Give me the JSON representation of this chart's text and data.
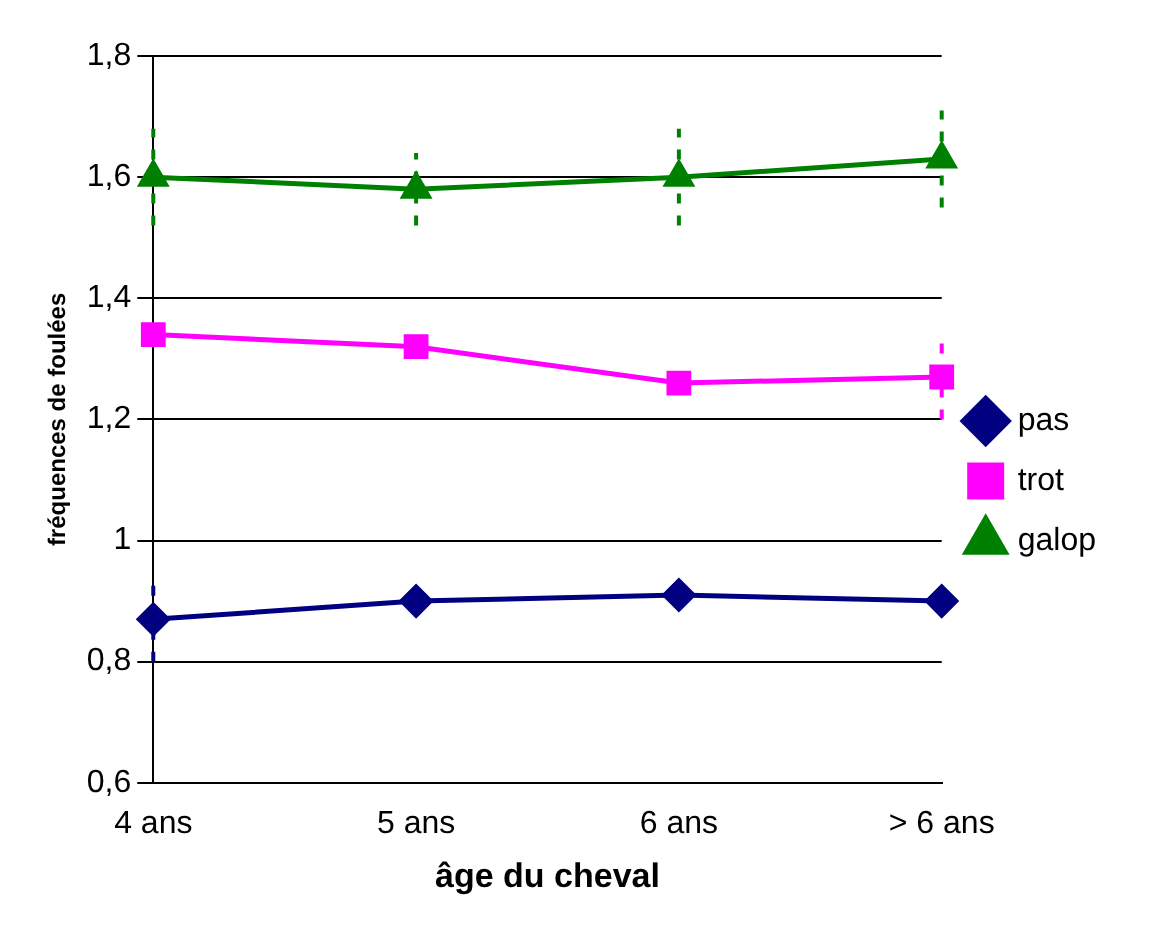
{
  "chart_data": {
    "type": "line",
    "xlabel": "âge du cheval",
    "ylabel": "fréquences de foulées",
    "categories": [
      "4 ans",
      "5 ans",
      "6 ans",
      "> 6 ans"
    ],
    "series": [
      {
        "name": "pas",
        "color": "#000080",
        "marker": "diamond",
        "values": [
          0.87,
          0.9,
          0.91,
          0.9
        ],
        "errors": [
          0.07,
          null,
          null,
          null
        ]
      },
      {
        "name": "trot",
        "color": "#ff00ff",
        "marker": "square",
        "values": [
          1.34,
          1.32,
          1.26,
          1.27
        ],
        "errors": [
          null,
          null,
          null,
          0.07
        ]
      },
      {
        "name": "galop",
        "color": "#008000",
        "marker": "triangle",
        "values": [
          1.6,
          1.58,
          1.6,
          1.63
        ],
        "errors": [
          0.08,
          0.06,
          0.08,
          0.08
        ]
      }
    ],
    "ylim": [
      0.6,
      1.8
    ],
    "yticks": [
      {
        "value": 0.6,
        "label": "0,6"
      },
      {
        "value": 0.8,
        "label": "0,8"
      },
      {
        "value": 1,
        "label": "1"
      },
      {
        "value": 1.2,
        "label": "1,2"
      },
      {
        "value": 1.4,
        "label": "1,4"
      },
      {
        "value": 1.6,
        "label": "1,6"
      },
      {
        "value": 1.8,
        "label": "1,8"
      }
    ],
    "grid": "y",
    "legend": "right"
  }
}
